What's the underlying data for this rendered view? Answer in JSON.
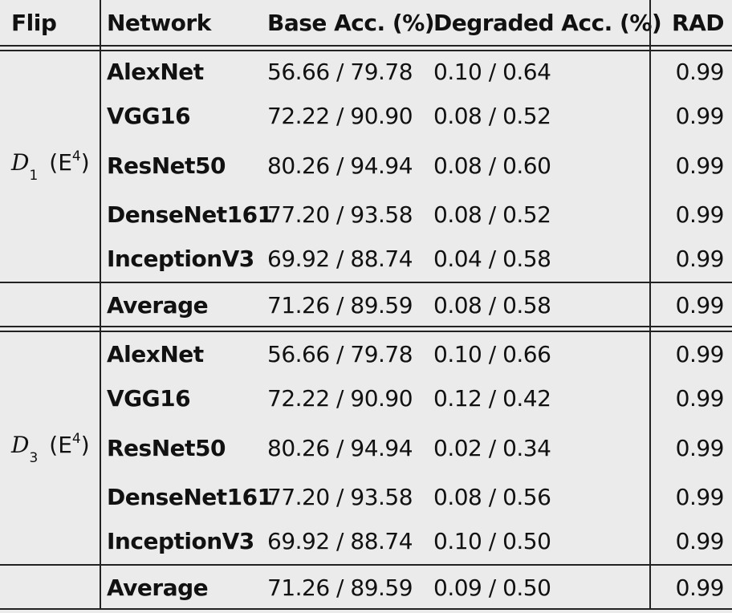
{
  "header": {
    "columns": [
      "Flip",
      "Network",
      "Base Acc. (%)",
      "Degraded Acc. (%)",
      "RAD"
    ]
  },
  "groups": [
    {
      "flip": {
        "symbol": "D",
        "subscript": "1",
        "open": "(E",
        "superscript": "4",
        "close": ")"
      },
      "rows": [
        [
          "AlexNet",
          "56.66 / 79.78",
          "0.10 / 0.64",
          "0.99"
        ],
        [
          "VGG16",
          "72.22 / 90.90",
          "0.08 / 0.52",
          "0.99"
        ],
        [
          "ResNet50",
          "80.26 / 94.94",
          "0.08 / 0.60",
          "0.99"
        ],
        [
          "DenseNet161",
          "77.20 / 93.58",
          "0.08 / 0.52",
          "0.99"
        ],
        [
          "InceptionV3",
          "69.92 / 88.74",
          "0.04 / 0.58",
          "0.99"
        ]
      ],
      "average": [
        "Average",
        "71.26 / 89.59",
        "0.08 / 0.58",
        "0.99"
      ]
    },
    {
      "flip": {
        "symbol": "D",
        "subscript": "3",
        "open": "(E",
        "superscript": "4",
        "close": ")"
      },
      "rows": [
        [
          "AlexNet",
          "56.66 / 79.78",
          "0.10 / 0.66",
          "0.99"
        ],
        [
          "VGG16",
          "72.22 / 90.90",
          "0.12 / 0.42",
          "0.99"
        ],
        [
          "ResNet50",
          "80.26 / 94.94",
          "0.02 / 0.34",
          "0.99"
        ],
        [
          "DenseNet161",
          "77.20 / 93.58",
          "0.08 / 0.56",
          "0.99"
        ],
        [
          "InceptionV3",
          "69.92 / 88.74",
          "0.10 / 0.50",
          "0.99"
        ]
      ],
      "average": [
        "Average",
        "71.26 / 89.59",
        "0.09 / 0.50",
        "0.99"
      ]
    }
  ]
}
